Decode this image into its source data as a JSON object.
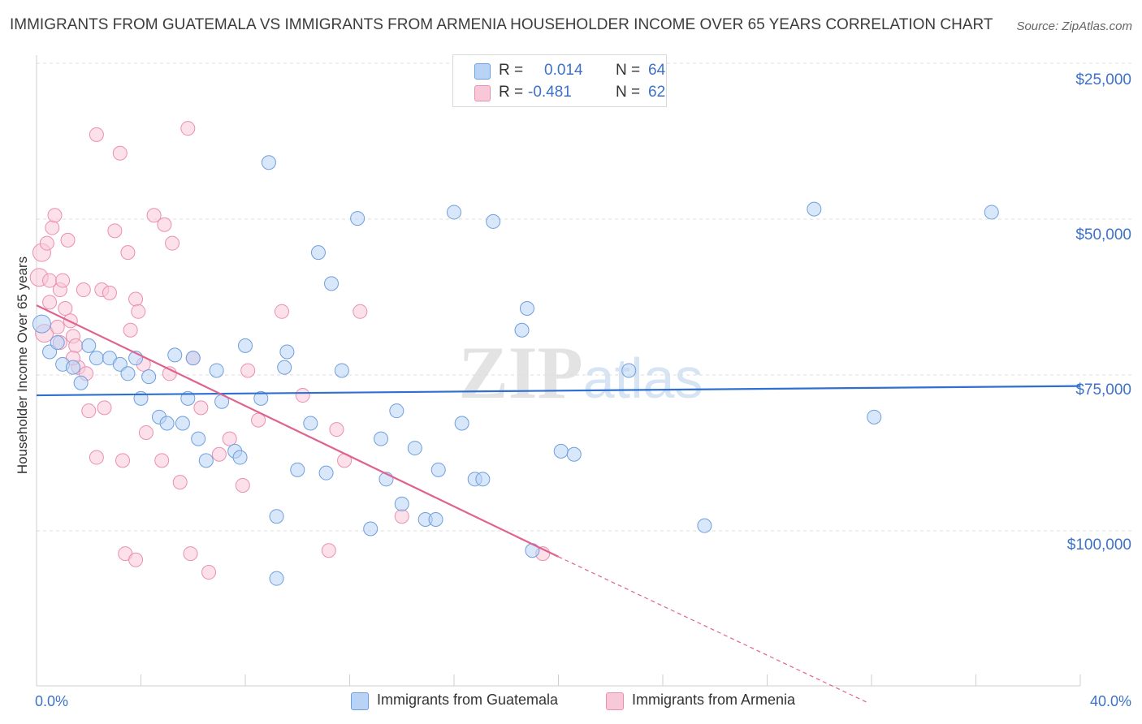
{
  "title": "IMMIGRANTS FROM GUATEMALA VS IMMIGRANTS FROM ARMENIA HOUSEHOLDER INCOME OVER 65 YEARS CORRELATION CHART",
  "source": "Source: ZipAtlas.com",
  "watermark": "ZIPatlas",
  "colors": {
    "guatemala_fill": "#b8d3f5",
    "guatemala_stroke": "#6f9fdc",
    "guatemala_line": "#2f6fd0",
    "armenia_fill": "#f9c8d8",
    "armenia_stroke": "#ea8fb0",
    "armenia_line": "#e0638f",
    "tick_label": "#3d72c8",
    "grid": "#dcdcdc"
  },
  "legend": {
    "rows": [
      {
        "r_label": "R =",
        "r_value": "0.014",
        "n_label": "N =",
        "n_value": "64"
      },
      {
        "r_label": "R =",
        "r_value": "-0.481",
        "n_label": "N =",
        "n_value": "62"
      }
    ]
  },
  "chart_data": {
    "type": "scatter",
    "title": "IMMIGRANTS FROM GUATEMALA VS IMMIGRANTS FROM ARMENIA HOUSEHOLDER INCOME OVER 65 YEARS CORRELATION CHART",
    "xlabel": "",
    "ylabel": "Householder Income Over 65 years",
    "xlim": [
      0,
      40
    ],
    "ylim": [
      0,
      102000
    ],
    "x_tick_labels": [
      "0.0%",
      "40.0%"
    ],
    "y_ticks": [
      25000,
      50000,
      75000,
      100000
    ],
    "y_tick_labels": [
      "$25,000",
      "$50,000",
      "$75,000",
      "$100,000"
    ],
    "grid": "horizontal dashed",
    "legend_position": "top-center",
    "series": [
      {
        "name": "Immigrants from Guatemala",
        "r": 0.014,
        "n": 64,
        "trend": {
          "x": [
            0,
            40
          ],
          "y": [
            49000,
            50500
          ]
        },
        "points": [
          [
            0.2,
            60500
          ],
          [
            0.5,
            56000
          ],
          [
            0.8,
            57500
          ],
          [
            1.0,
            54000
          ],
          [
            1.4,
            53500
          ],
          [
            1.7,
            51000
          ],
          [
            2.0,
            57000
          ],
          [
            2.3,
            55000
          ],
          [
            2.8,
            55000
          ],
          [
            3.2,
            54000
          ],
          [
            3.5,
            52500
          ],
          [
            3.8,
            55000
          ],
          [
            4.0,
            48500
          ],
          [
            4.3,
            52000
          ],
          [
            4.7,
            45500
          ],
          [
            5.0,
            44500
          ],
          [
            5.3,
            55500
          ],
          [
            5.6,
            44500
          ],
          [
            5.8,
            48500
          ],
          [
            6.2,
            42000
          ],
          [
            6.5,
            38500
          ],
          [
            6.9,
            53000
          ],
          [
            7.1,
            48000
          ],
          [
            7.6,
            40000
          ],
          [
            7.8,
            39000
          ],
          [
            8.0,
            57000
          ],
          [
            8.6,
            48500
          ],
          [
            8.9,
            86500
          ],
          [
            9.2,
            29500
          ],
          [
            9.5,
            53500
          ],
          [
            9.6,
            56000
          ],
          [
            10.0,
            37000
          ],
          [
            10.5,
            44500
          ],
          [
            10.8,
            72000
          ],
          [
            11.1,
            36500
          ],
          [
            11.3,
            67000
          ],
          [
            11.7,
            53000
          ],
          [
            12.3,
            77500
          ],
          [
            12.8,
            27500
          ],
          [
            13.2,
            42000
          ],
          [
            13.4,
            35500
          ],
          [
            13.8,
            46500
          ],
          [
            14.0,
            31500
          ],
          [
            14.5,
            40500
          ],
          [
            14.9,
            29000
          ],
          [
            15.3,
            29000
          ],
          [
            15.4,
            37000
          ],
          [
            16.0,
            78500
          ],
          [
            16.3,
            44500
          ],
          [
            16.8,
            35500
          ],
          [
            17.1,
            35500
          ],
          [
            17.5,
            77000
          ],
          [
            18.6,
            59500
          ],
          [
            18.8,
            63000
          ],
          [
            19.0,
            24000
          ],
          [
            20.1,
            40000
          ],
          [
            20.6,
            39500
          ],
          [
            22.7,
            53000
          ],
          [
            25.6,
            28000
          ],
          [
            29.8,
            79000
          ],
          [
            32.1,
            45500
          ],
          [
            36.6,
            78500
          ],
          [
            9.2,
            19500
          ],
          [
            6.0,
            55000
          ]
        ]
      },
      {
        "name": "Immigrants from Armenia",
        "r": -0.481,
        "n": 62,
        "trend": {
          "x": [
            0,
            20
          ],
          "y": [
            63500,
            23000
          ]
        },
        "trend_dashed": {
          "x": [
            20,
            31.8
          ],
          "y": [
            23000,
            -400
          ]
        },
        "points": [
          [
            0.1,
            68000
          ],
          [
            0.2,
            72000
          ],
          [
            0.3,
            59000
          ],
          [
            0.4,
            73500
          ],
          [
            0.5,
            64000
          ],
          [
            0.5,
            67500
          ],
          [
            0.6,
            76000
          ],
          [
            0.7,
            78000
          ],
          [
            0.8,
            60000
          ],
          [
            0.9,
            66000
          ],
          [
            0.9,
            57500
          ],
          [
            1.0,
            67500
          ],
          [
            1.1,
            63000
          ],
          [
            1.2,
            74000
          ],
          [
            1.3,
            61000
          ],
          [
            1.4,
            58500
          ],
          [
            1.5,
            57000
          ],
          [
            1.6,
            53500
          ],
          [
            1.8,
            66000
          ],
          [
            2.0,
            46500
          ],
          [
            2.3,
            91000
          ],
          [
            2.3,
            39000
          ],
          [
            2.5,
            66000
          ],
          [
            2.6,
            47000
          ],
          [
            2.8,
            65500
          ],
          [
            3.0,
            75500
          ],
          [
            3.2,
            88000
          ],
          [
            3.3,
            38500
          ],
          [
            3.5,
            72000
          ],
          [
            3.6,
            59500
          ],
          [
            3.8,
            64500
          ],
          [
            3.9,
            62500
          ],
          [
            4.1,
            54000
          ],
          [
            4.2,
            43000
          ],
          [
            4.5,
            78000
          ],
          [
            4.9,
            76500
          ],
          [
            5.1,
            52500
          ],
          [
            5.2,
            73500
          ],
          [
            5.5,
            35000
          ],
          [
            5.8,
            92000
          ],
          [
            6.0,
            55000
          ],
          [
            6.3,
            47000
          ],
          [
            6.6,
            20500
          ],
          [
            7.0,
            39500
          ],
          [
            7.4,
            42000
          ],
          [
            8.1,
            53000
          ],
          [
            8.5,
            45000
          ],
          [
            9.4,
            62500
          ],
          [
            10.2,
            49000
          ],
          [
            11.5,
            43500
          ],
          [
            11.8,
            38500
          ],
          [
            12.4,
            62500
          ],
          [
            14.0,
            29500
          ],
          [
            1.9,
            52500
          ],
          [
            3.4,
            23500
          ],
          [
            3.8,
            22500
          ],
          [
            4.8,
            38500
          ],
          [
            5.9,
            23500
          ],
          [
            7.9,
            34500
          ],
          [
            11.2,
            24000
          ],
          [
            19.4,
            23500
          ],
          [
            1.4,
            55000
          ]
        ]
      }
    ]
  },
  "bottom_legend": [
    {
      "label": "Immigrants from Guatemala"
    },
    {
      "label": "Immigrants from Armenia"
    }
  ]
}
